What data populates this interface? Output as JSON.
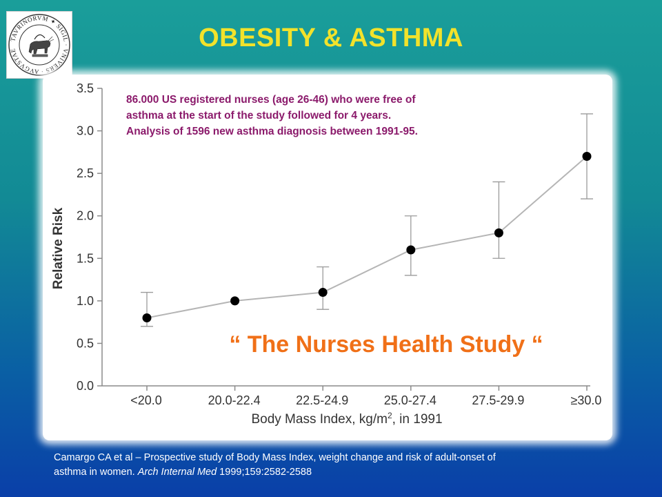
{
  "slide": {
    "title": "OBESITY & ASTHMA",
    "note_lines": [
      "86.000 US registered nurses (age 26-46) who were free of",
      "asthma at the start of the study followed for 4 years.",
      "Analysis of 1596 new asthma diagnosis between 1991-95."
    ],
    "study_label": "“ The Nurses Health Study “",
    "citation": {
      "line1": "Camargo CA et al – Prospective study of Body Mass Index, weight change and risk of adult-onset of",
      "line2_prefix": "asthma in women. ",
      "journal": "Arch Internal Med",
      "line2_suffix": " 1999;159:2582-2588"
    },
    "seal": {
      "text": "TAVRINORVM ✦ SIGIL · VNIVERS · AVGVSTAE ·"
    }
  },
  "colors": {
    "title": "#f2e22b",
    "note": "#8b1a6b",
    "study_label": "#f07018",
    "line": "#b5b5b5",
    "marker": "#000000",
    "errorbar": "#9a9a9a",
    "axis": "#8a8a8a"
  },
  "chart_data": {
    "type": "line",
    "categories": [
      "<20.0",
      "20.0-22.4",
      "22.5-24.9",
      "25.0-27.4",
      "27.5-29.9",
      "≥30.0"
    ],
    "values": [
      0.8,
      1.0,
      1.1,
      1.6,
      1.8,
      2.7
    ],
    "error_low": [
      0.7,
      null,
      0.9,
      1.3,
      1.5,
      2.2
    ],
    "error_high": [
      1.1,
      null,
      1.4,
      2.0,
      2.4,
      3.2
    ],
    "xlabel": "Body Mass Index, kg/m², in 1991",
    "ylabel": "Relative Risk",
    "ylim": [
      0,
      3.5
    ],
    "yticks": [
      "0.0",
      "0.5",
      "1.0",
      "1.5",
      "2.0",
      "2.5",
      "3.0",
      "3.5"
    ],
    "grid": false
  }
}
